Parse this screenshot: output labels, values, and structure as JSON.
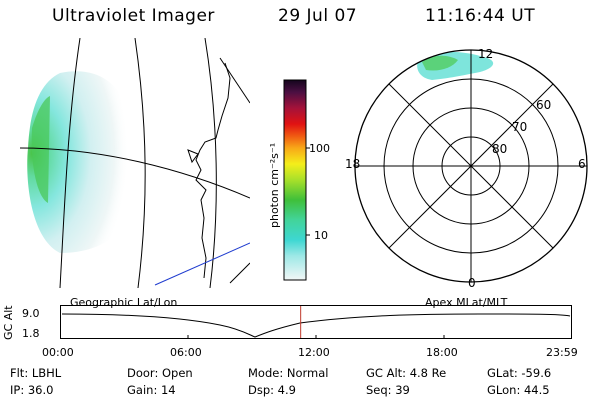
{
  "header": {
    "instrument": "Ultraviolet Imager",
    "date": "29 Jul 07",
    "time": "11:16:44 UT"
  },
  "colorbar": {
    "unit_label": "photon cm⁻²s⁻¹",
    "ticks": [
      "100",
      "10"
    ]
  },
  "polar": {
    "mlt_labels": {
      "top": "12",
      "bottom": "0",
      "left": "18",
      "right": "6"
    },
    "mlat_labels": [
      "60",
      "70",
      "80"
    ]
  },
  "altitude_panel": {
    "left_title": "Geographic Lat/Lon",
    "right_title": "Apex MLat/MLT",
    "ylabel": "GC Alt",
    "ymax": "9.0",
    "ymin": "1.8",
    "x_ticks": [
      "00:00",
      "06:00",
      "12:00",
      "18:00",
      "23:59"
    ],
    "marker_hour": 11.28
  },
  "footer": {
    "filter": "Flt: LBHL",
    "ip": "IP: 36.0",
    "door": "Door: Open",
    "gain": "Gain: 14",
    "mode": "Mode: Normal",
    "dsp": "Dsp:    4.9",
    "gc_alt": "GC Alt: 4.8 Re",
    "seq": "Seq: 39",
    "glat": "GLat:  -59.6",
    "glon": "GLon:   44.5"
  },
  "colors": {
    "marker": "#c0392b",
    "coast_blue": "#1f3ccf",
    "aurora_cyan": "#5fe0d8",
    "aurora_green": "#4ec94a"
  }
}
